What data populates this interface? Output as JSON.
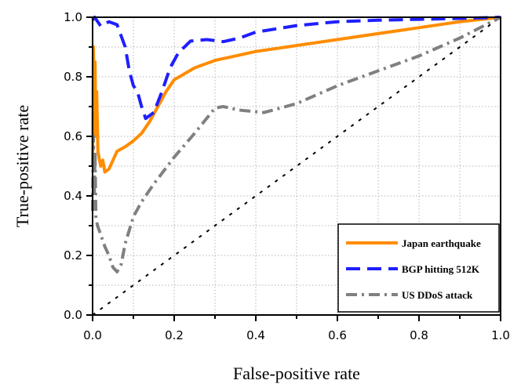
{
  "chart_data": {
    "type": "line",
    "xlabel": "False-positive rate",
    "ylabel": "True-positive rate",
    "xlim": [
      0,
      1
    ],
    "ylim": [
      0,
      1
    ],
    "x_ticks": [
      0,
      0.2,
      0.4,
      0.6,
      0.8,
      1.0
    ],
    "y_ticks": [
      0,
      0.2,
      0.4,
      0.6,
      0.8,
      1.0
    ],
    "x_tick_labels": [
      "0.0",
      "0.2",
      "0.4",
      "0.6",
      "0.8",
      "1.0"
    ],
    "y_tick_labels": [
      "0.0",
      "0.2",
      "0.4",
      "0.6",
      "0.8",
      "1.0"
    ],
    "grid": true,
    "legend_position": "bottom-right",
    "series": [
      {
        "name": "Japan earthquake",
        "color": "#ff8c00",
        "line_style": "solid",
        "points": [
          [
            0.0,
            0.5
          ],
          [
            0.002,
            0.9
          ],
          [
            0.004,
            0.7
          ],
          [
            0.006,
            0.85
          ],
          [
            0.008,
            0.6
          ],
          [
            0.01,
            0.75
          ],
          [
            0.013,
            0.55
          ],
          [
            0.017,
            0.52
          ],
          [
            0.02,
            0.5
          ],
          [
            0.025,
            0.52
          ],
          [
            0.03,
            0.48
          ],
          [
            0.04,
            0.49
          ],
          [
            0.05,
            0.52
          ],
          [
            0.06,
            0.55
          ],
          [
            0.08,
            0.565
          ],
          [
            0.1,
            0.585
          ],
          [
            0.12,
            0.61
          ],
          [
            0.14,
            0.65
          ],
          [
            0.16,
            0.7
          ],
          [
            0.18,
            0.75
          ],
          [
            0.2,
            0.79
          ],
          [
            0.25,
            0.83
          ],
          [
            0.3,
            0.855
          ],
          [
            0.35,
            0.87
          ],
          [
            0.4,
            0.885
          ],
          [
            0.5,
            0.905
          ],
          [
            0.6,
            0.925
          ],
          [
            0.7,
            0.945
          ],
          [
            0.8,
            0.965
          ],
          [
            0.9,
            0.985
          ],
          [
            1.0,
            1.0
          ]
        ]
      },
      {
        "name": "BGP hitting 512K",
        "color": "#1f1fff",
        "line_style": "dashed",
        "points": [
          [
            0.0,
            0.99
          ],
          [
            0.005,
            1.0
          ],
          [
            0.01,
            0.99
          ],
          [
            0.02,
            0.97
          ],
          [
            0.04,
            0.985
          ],
          [
            0.06,
            0.975
          ],
          [
            0.08,
            0.9
          ],
          [
            0.09,
            0.82
          ],
          [
            0.1,
            0.77
          ],
          [
            0.11,
            0.75
          ],
          [
            0.12,
            0.7
          ],
          [
            0.13,
            0.66
          ],
          [
            0.15,
            0.68
          ],
          [
            0.17,
            0.75
          ],
          [
            0.19,
            0.83
          ],
          [
            0.21,
            0.88
          ],
          [
            0.24,
            0.92
          ],
          [
            0.28,
            0.925
          ],
          [
            0.32,
            0.918
          ],
          [
            0.36,
            0.93
          ],
          [
            0.4,
            0.95
          ],
          [
            0.5,
            0.972
          ],
          [
            0.6,
            0.985
          ],
          [
            0.7,
            0.99
          ],
          [
            0.8,
            0.993
          ],
          [
            0.9,
            0.996
          ],
          [
            1.0,
            1.0
          ]
        ]
      },
      {
        "name": "US DDoS attack",
        "color": "#808080",
        "line_style": "dashdot",
        "points": [
          [
            0.0,
            0.35
          ],
          [
            0.002,
            0.6
          ],
          [
            0.004,
            0.4
          ],
          [
            0.006,
            0.55
          ],
          [
            0.008,
            0.33
          ],
          [
            0.012,
            0.3
          ],
          [
            0.02,
            0.27
          ],
          [
            0.03,
            0.23
          ],
          [
            0.04,
            0.2
          ],
          [
            0.05,
            0.16
          ],
          [
            0.06,
            0.145
          ],
          [
            0.07,
            0.17
          ],
          [
            0.08,
            0.24
          ],
          [
            0.1,
            0.33
          ],
          [
            0.12,
            0.38
          ],
          [
            0.15,
            0.44
          ],
          [
            0.2,
            0.53
          ],
          [
            0.25,
            0.61
          ],
          [
            0.3,
            0.695
          ],
          [
            0.32,
            0.7
          ],
          [
            0.36,
            0.688
          ],
          [
            0.42,
            0.68
          ],
          [
            0.5,
            0.71
          ],
          [
            0.6,
            0.77
          ],
          [
            0.7,
            0.82
          ],
          [
            0.8,
            0.87
          ],
          [
            0.9,
            0.93
          ],
          [
            1.0,
            1.0
          ]
        ]
      },
      {
        "name": "",
        "color": "#000000",
        "line_style": "dotted",
        "points": [
          [
            0.0,
            0.0
          ],
          [
            1.0,
            1.0
          ]
        ]
      }
    ]
  }
}
